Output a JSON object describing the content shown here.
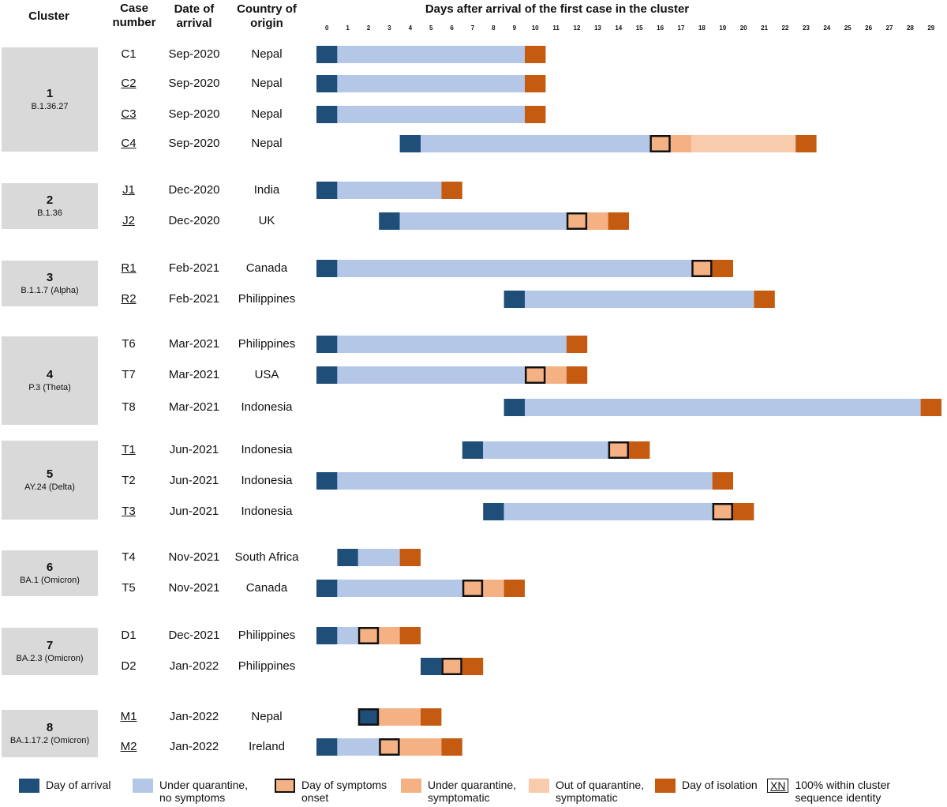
{
  "headers": {
    "cluster": "Cluster",
    "case_number": "Case\nnumber",
    "date_of_arrival": "Date of\narrival",
    "country_of_origin": "Country of\norigin",
    "days": "Days after arrival of the first case in the cluster"
  },
  "colors": {
    "day_of_arrival": "#1f4e79",
    "quarantine_no_symptoms": "#b4c7e7",
    "symptoms_onset": "#f4b183",
    "quarantine_symptomatic": "#f4b183",
    "out_of_quarantine_symptomatic": "#f8cbad",
    "isolation": "#c55a11",
    "cluster_box": "#d9d9d9"
  },
  "clusters": [
    {
      "number": "1",
      "variant": "B.1.36.27"
    },
    {
      "number": "2",
      "variant": "B.1.36"
    },
    {
      "number": "3",
      "variant": "B.1.1.7 (Alpha)"
    },
    {
      "number": "4",
      "variant": "P.3 (Theta)"
    },
    {
      "number": "5",
      "variant": "AY.24 (Delta)"
    },
    {
      "number": "6",
      "variant": "BA.1 (Omicron)"
    },
    {
      "number": "7",
      "variant": "BA.2.3 (Omicron)"
    },
    {
      "number": "8",
      "variant": "BA.1.17.2 (Omicron)"
    }
  ],
  "legend": [
    {
      "key": "day_of_arrival",
      "label": "Day of arrival"
    },
    {
      "key": "quarantine_no_symptoms",
      "label": "Under quarantine, no symptoms"
    },
    {
      "key": "symptoms_onset",
      "label": "Day of symptoms onset"
    },
    {
      "key": "quarantine_symptomatic",
      "label": "Under quarantine, symptomatic"
    },
    {
      "key": "out_of_quarantine_symptomatic",
      "label": "Out of quarantine, symptomatic"
    },
    {
      "key": "isolation",
      "label": "Day of isolation"
    },
    {
      "key": "sequence_identity",
      "symbol": "XN",
      "label": "100% within cluster sequence identity"
    }
  ],
  "chart_data": {
    "type": "bar",
    "title": "Days after arrival of the first case in the cluster",
    "x_ticks": [
      0,
      1,
      2,
      3,
      4,
      5,
      6,
      7,
      8,
      9,
      10,
      11,
      12,
      13,
      14,
      15,
      16,
      17,
      18,
      19,
      20,
      21,
      22,
      23,
      24,
      25,
      26,
      27,
      28,
      29
    ],
    "xlim": [
      0,
      30
    ],
    "cases": [
      {
        "cluster": 1,
        "case": "C1",
        "underlined": false,
        "date": "Sep-2020",
        "country": "Nepal",
        "arrival_day": 0,
        "symptom_onset_day": null,
        "symptomatic_from": null,
        "out_of_quarantine_from": null,
        "isolation_day": 10
      },
      {
        "cluster": 1,
        "case": "C2",
        "underlined": true,
        "date": "Sep-2020",
        "country": "Nepal",
        "arrival_day": 0,
        "symptom_onset_day": null,
        "symptomatic_from": null,
        "out_of_quarantine_from": null,
        "isolation_day": 10
      },
      {
        "cluster": 1,
        "case": "C3",
        "underlined": true,
        "date": "Sep-2020",
        "country": "Nepal",
        "arrival_day": 0,
        "symptom_onset_day": null,
        "symptomatic_from": null,
        "out_of_quarantine_from": null,
        "isolation_day": 10
      },
      {
        "cluster": 1,
        "case": "C4",
        "underlined": true,
        "date": "Sep-2020",
        "country": "Nepal",
        "arrival_day": 4,
        "symptom_onset_day": 16,
        "symptomatic_from": 17,
        "out_of_quarantine_from": 18,
        "isolation_day": 23
      },
      {
        "cluster": 2,
        "case": "J1",
        "underlined": true,
        "date": "Dec-2020",
        "country": "India",
        "arrival_day": 0,
        "symptom_onset_day": null,
        "symptomatic_from": null,
        "out_of_quarantine_from": null,
        "isolation_day": 6
      },
      {
        "cluster": 2,
        "case": "J2",
        "underlined": true,
        "date": "Dec-2020",
        "country": "UK",
        "arrival_day": 3,
        "symptom_onset_day": 12,
        "symptomatic_from": 13,
        "out_of_quarantine_from": null,
        "isolation_day": 14
      },
      {
        "cluster": 3,
        "case": "R1",
        "underlined": true,
        "date": "Feb-2021",
        "country": "Canada",
        "arrival_day": 0,
        "symptom_onset_day": 18,
        "symptomatic_from": null,
        "out_of_quarantine_from": null,
        "isolation_day": 19
      },
      {
        "cluster": 3,
        "case": "R2",
        "underlined": true,
        "date": "Feb-2021",
        "country": "Philippines",
        "arrival_day": 9,
        "symptom_onset_day": null,
        "symptomatic_from": null,
        "out_of_quarantine_from": null,
        "isolation_day": 21
      },
      {
        "cluster": 4,
        "case": "T6",
        "underlined": false,
        "date": "Mar-2021",
        "country": "Philippines",
        "arrival_day": 0,
        "symptom_onset_day": null,
        "symptomatic_from": null,
        "out_of_quarantine_from": null,
        "isolation_day": 12
      },
      {
        "cluster": 4,
        "case": "T7",
        "underlined": false,
        "date": "Mar-2021",
        "country": "USA",
        "arrival_day": 0,
        "symptom_onset_day": 10,
        "symptomatic_from": 11,
        "out_of_quarantine_from": null,
        "isolation_day": 12
      },
      {
        "cluster": 4,
        "case": "T8",
        "underlined": false,
        "date": "Mar-2021",
        "country": "Indonesia",
        "arrival_day": 9,
        "symptom_onset_day": null,
        "symptomatic_from": null,
        "out_of_quarantine_from": null,
        "isolation_day": 29
      },
      {
        "cluster": 5,
        "case": "T1",
        "underlined": true,
        "date": "Jun-2021",
        "country": "Indonesia",
        "arrival_day": 7,
        "symptom_onset_day": 14,
        "symptomatic_from": null,
        "out_of_quarantine_from": null,
        "isolation_day": 15
      },
      {
        "cluster": 5,
        "case": "T2",
        "underlined": false,
        "date": "Jun-2021",
        "country": "Indonesia",
        "arrival_day": 0,
        "symptom_onset_day": null,
        "symptomatic_from": null,
        "out_of_quarantine_from": null,
        "isolation_day": 19
      },
      {
        "cluster": 5,
        "case": "T3",
        "underlined": true,
        "date": "Jun-2021",
        "country": "Indonesia",
        "arrival_day": 8,
        "symptom_onset_day": 19,
        "symptomatic_from": null,
        "out_of_quarantine_from": null,
        "isolation_day": 20
      },
      {
        "cluster": 6,
        "case": "T4",
        "underlined": false,
        "date": "Nov-2021",
        "country": "South Africa",
        "arrival_day": 1,
        "symptom_onset_day": null,
        "symptomatic_from": null,
        "out_of_quarantine_from": null,
        "isolation_day": 4
      },
      {
        "cluster": 6,
        "case": "T5",
        "underlined": false,
        "date": "Nov-2021",
        "country": "Canada",
        "arrival_day": 0,
        "symptom_onset_day": 7,
        "symptomatic_from": 8,
        "out_of_quarantine_from": null,
        "isolation_day": 9
      },
      {
        "cluster": 7,
        "case": "D1",
        "underlined": false,
        "date": "Dec-2021",
        "country": "Philippines",
        "arrival_day": 0,
        "symptom_onset_day": 2,
        "symptomatic_from": 3,
        "out_of_quarantine_from": null,
        "isolation_day": 4
      },
      {
        "cluster": 7,
        "case": "D2",
        "underlined": false,
        "date": "Jan-2022",
        "country": "Philippines",
        "arrival_day": 5,
        "symptom_onset_day": 6,
        "symptomatic_from": null,
        "out_of_quarantine_from": null,
        "isolation_day": 7
      },
      {
        "cluster": 8,
        "case": "M1",
        "underlined": true,
        "date": "Jan-2022",
        "country": "Nepal",
        "arrival_day": 2,
        "symptom_onset_day": 2,
        "symptomatic_from": 3,
        "out_of_quarantine_from": null,
        "isolation_day": 5
      },
      {
        "cluster": 8,
        "case": "M2",
        "underlined": true,
        "date": "Jan-2022",
        "country": "Ireland",
        "arrival_day": 0,
        "symptom_onset_day": 3,
        "symptomatic_from": 4,
        "out_of_quarantine_from": null,
        "isolation_day": 6
      }
    ]
  }
}
